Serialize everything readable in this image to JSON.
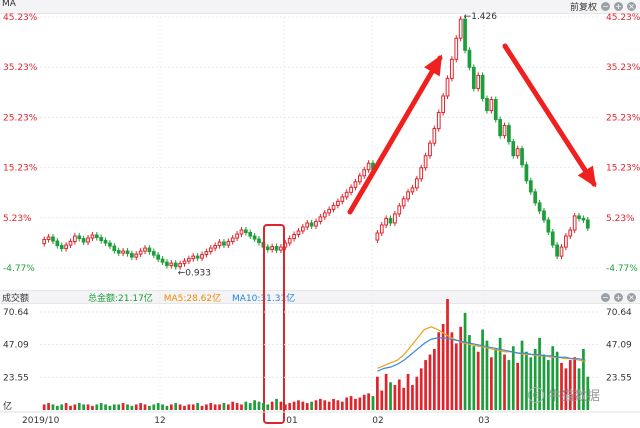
{
  "header": {
    "ma_label": "MA",
    "adjust_label": "前复权",
    "minus_icon": "−",
    "plus_icon": "+",
    "close_icon": "×"
  },
  "volume_header": {
    "title": "成交额",
    "total": "总金额:21.17亿",
    "ma5": "MA5:28.62亿",
    "ma10": "MA10:31.31亿",
    "color_total": "#1a9e3a",
    "color_ma5": "#f08a00",
    "color_ma10": "#1f8ad8"
  },
  "y_axis_labels": [
    "45.23%",
    "35.23%",
    "25.23%",
    "15.23%",
    "5.23%",
    "-4.77%"
  ],
  "vol_axis_labels": [
    "70.64",
    "47.09",
    "23.55",
    "亿"
  ],
  "x_axis_labels": [
    "2019/10",
    "12",
    "01",
    "02",
    "03"
  ],
  "annotations": {
    "high_label": "1.426",
    "low_label": "0.933"
  },
  "watermark": "牛猫数据",
  "colors": {
    "up": "#e0242c",
    "down": "#1c9e3a",
    "arrow": "#ef2020",
    "highlight_box": "#e0242c",
    "ma5_line": "#f0a020",
    "ma10_line": "#3a8ad6"
  },
  "chart_data": [
    {
      "type": "candlestick",
      "y_axis": {
        "ticks": [
          45.23,
          35.23,
          25.23,
          15.23,
          5.23,
          -4.77
        ],
        "unit": "%"
      },
      "x_ticks": [
        "2019/10",
        "12",
        "01",
        "02",
        "03"
      ],
      "annotations": [
        {
          "label": "1.426",
          "type": "high"
        },
        {
          "label": "0.933",
          "type": "low"
        }
      ],
      "candles": [
        [
          0.1,
          0.9
        ],
        [
          0.9,
          1.4
        ],
        [
          1.4,
          0.6
        ],
        [
          0.6,
          -0.3
        ],
        [
          -0.3,
          -0.9
        ],
        [
          -0.9,
          -0.2
        ],
        [
          -0.2,
          0.5
        ],
        [
          0.5,
          1.6
        ],
        [
          1.6,
          1.1
        ],
        [
          1.1,
          0.4
        ],
        [
          0.4,
          1.2
        ],
        [
          1.2,
          1.8
        ],
        [
          1.8,
          1.3
        ],
        [
          1.3,
          0.7
        ],
        [
          0.7,
          0.2
        ],
        [
          0.2,
          -0.4
        ],
        [
          -0.4,
          -1.3
        ],
        [
          -1.3,
          -1.8
        ],
        [
          -1.8,
          -1.4
        ],
        [
          -1.4,
          -1.9
        ],
        [
          -1.9,
          -2.6
        ],
        [
          -2.6,
          -2.0
        ],
        [
          -2.0,
          -1.4
        ],
        [
          -1.4,
          -0.8
        ],
        [
          -0.8,
          -1.5
        ],
        [
          -1.5,
          -2.2
        ],
        [
          -2.2,
          -3.0
        ],
        [
          -3.0,
          -3.6
        ],
        [
          -3.6,
          -4.3
        ],
        [
          -4.3,
          -3.8
        ],
        [
          -3.8,
          -4.5
        ],
        [
          -4.5,
          -3.9
        ],
        [
          -3.9,
          -3.4
        ],
        [
          -3.4,
          -2.9
        ],
        [
          -2.9,
          -2.4
        ],
        [
          -2.4,
          -2.8
        ],
        [
          -2.8,
          -2.1
        ],
        [
          -2.1,
          -1.5
        ],
        [
          -1.5,
          -0.8
        ],
        [
          -0.8,
          -0.3
        ],
        [
          -0.3,
          0.4
        ],
        [
          0.4,
          -0.2
        ],
        [
          -0.2,
          0.5
        ],
        [
          0.5,
          1.2
        ],
        [
          1.2,
          2.0
        ],
        [
          2.0,
          2.8
        ],
        [
          2.8,
          2.3
        ],
        [
          2.3,
          1.6
        ],
        [
          1.6,
          1.0
        ],
        [
          1.0,
          0.3
        ],
        [
          0.3,
          -0.6
        ],
        [
          -0.6,
          -1.1
        ],
        [
          -1.1,
          -0.5
        ],
        [
          -0.5,
          -1.2
        ],
        [
          -1.2,
          -0.6
        ],
        [
          -0.6,
          0.2
        ],
        [
          0.2,
          1.1
        ],
        [
          1.1,
          1.9
        ],
        [
          1.9,
          2.6
        ],
        [
          2.6,
          3.4
        ],
        [
          3.4,
          4.2
        ],
        [
          4.2,
          3.6
        ],
        [
          3.6,
          4.5
        ],
        [
          4.5,
          5.4
        ],
        [
          5.4,
          6.2
        ],
        [
          6.2,
          6.9
        ],
        [
          6.9,
          7.7
        ],
        [
          7.7,
          8.5
        ],
        [
          8.5,
          9.4
        ],
        [
          9.4,
          10.3
        ],
        [
          10.3,
          11.3
        ],
        [
          11.3,
          12.4
        ],
        [
          12.4,
          13.6
        ],
        [
          13.6,
          14.8
        ],
        [
          14.8,
          16.1
        ],
        [
          16.1,
          14.9
        ],
        [
          0.8,
          2.2
        ],
        [
          2.2,
          3.8
        ],
        [
          3.8,
          5.1
        ],
        [
          5.1,
          4.2
        ],
        [
          4.2,
          6.0
        ],
        [
          6.0,
          7.6
        ],
        [
          7.6,
          9.0
        ],
        [
          9.0,
          10.4
        ],
        [
          10.4,
          11.2
        ],
        [
          11.2,
          13.0
        ],
        [
          13.0,
          15.2
        ],
        [
          15.2,
          17.6
        ],
        [
          17.6,
          20.1
        ],
        [
          20.1,
          23.0
        ],
        [
          23.0,
          26.2
        ],
        [
          26.2,
          29.5
        ],
        [
          29.5,
          33.0
        ],
        [
          33.0,
          36.8
        ],
        [
          36.8,
          41.0
        ],
        [
          41.0,
          44.8
        ],
        [
          44.8,
          38.6
        ],
        [
          38.6,
          35.2
        ],
        [
          35.2,
          31.0
        ],
        [
          31.0,
          33.6
        ],
        [
          33.6,
          29.0
        ],
        [
          29.0,
          26.6
        ],
        [
          26.6,
          28.8
        ],
        [
          28.8,
          24.8
        ],
        [
          24.8,
          21.6
        ],
        [
          21.6,
          23.6
        ],
        [
          23.6,
          20.4
        ],
        [
          20.4,
          17.6
        ],
        [
          17.6,
          19.0
        ],
        [
          19.0,
          15.8
        ],
        [
          15.8,
          12.6
        ],
        [
          12.6,
          10.4
        ],
        [
          10.4,
          8.2
        ],
        [
          8.2,
          6.6
        ],
        [
          6.6,
          4.8
        ],
        [
          4.8,
          2.4
        ],
        [
          2.4,
          -0.2
        ],
        [
          -0.2,
          -2.4
        ],
        [
          -2.4,
          -0.6
        ],
        [
          -0.6,
          1.6
        ],
        [
          1.6,
          2.8
        ],
        [
          2.8,
          5.6
        ],
        [
          5.6,
          5.1
        ],
        [
          5.1,
          4.8
        ],
        [
          4.8,
          3.2
        ]
      ]
    },
    {
      "type": "bar",
      "y_axis": {
        "ticks": [
          70.64,
          47.09,
          23.55
        ],
        "unit": "亿"
      },
      "volumes": [
        4,
        5,
        4,
        3,
        4,
        5,
        3,
        4,
        5,
        4,
        4,
        3,
        4,
        5,
        4,
        3,
        4,
        4,
        5,
        4,
        3,
        4,
        5,
        4,
        3,
        4,
        5,
        4,
        3,
        4,
        5,
        4,
        3,
        4,
        4,
        5,
        3,
        4,
        5,
        4,
        4,
        5,
        4,
        6,
        5,
        4,
        6,
        5,
        7,
        6,
        5,
        4,
        6,
        8,
        6,
        4,
        5,
        6,
        7,
        6,
        5,
        6,
        7,
        8,
        7,
        6,
        8,
        7,
        6,
        9,
        10,
        8,
        9,
        11,
        12,
        10,
        24,
        14,
        26,
        20,
        18,
        22,
        16,
        26,
        18,
        24,
        30,
        36,
        40,
        44,
        56,
        62,
        80,
        56,
        48,
        60,
        70,
        54,
        46,
        42,
        58,
        50,
        38,
        44,
        52,
        40,
        36,
        46,
        34,
        50,
        42,
        38,
        44,
        52,
        40,
        36,
        46,
        42,
        34,
        30,
        36,
        38,
        30,
        44,
        24
      ],
      "ma5_line": [
        30,
        32,
        34,
        36,
        40,
        46,
        52,
        58,
        60,
        58,
        55,
        52,
        50,
        48,
        47,
        46,
        45,
        44,
        43,
        42,
        42,
        41,
        40,
        40,
        39,
        39,
        38,
        38,
        37,
        37,
        36,
        35
      ],
      "ma10_line": [
        28,
        30,
        31,
        33,
        36,
        40,
        44,
        48,
        51,
        52,
        52,
        51,
        50,
        49,
        48,
        47,
        46,
        45,
        44,
        43,
        42,
        41,
        41,
        40,
        40,
        39,
        39,
        38,
        38,
        37,
        37,
        36
      ]
    }
  ]
}
